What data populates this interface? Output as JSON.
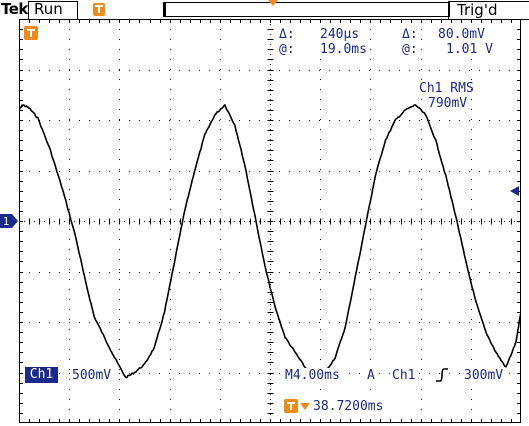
{
  "header": {
    "brand": "Tek",
    "run_state": "Run",
    "trigger_status": "Trig'd"
  },
  "cursors": {
    "delta_time_symbol": "Δ:",
    "delta_time": "240µs",
    "at_time_symbol": "@:",
    "at_time": "19.0ms",
    "delta_volt_symbol": "Δ:",
    "delta_volt": "80.0mV",
    "at_volt_symbol": "@:",
    "at_volt": "1.01 V"
  },
  "measurement": {
    "label": "Ch1 RMS",
    "value": "790mV"
  },
  "footer": {
    "channel_badge": "Ch1",
    "volts_per_div": "500mV",
    "timebase": "M4.00ms",
    "trigger_mode": "A",
    "trigger_source": "Ch1",
    "trigger_level": "300mV",
    "trigger_position": "38.7200ms"
  },
  "markers": {
    "channel_ground_label": "1"
  },
  "colors": {
    "readout": "#1a2a8c",
    "marker_orange": "#f08a1a",
    "trace": "#000000",
    "graticule": "#000000"
  },
  "chart_data": {
    "type": "line",
    "title": "",
    "xlabel": "",
    "ylabel": "",
    "x_unit": "ms",
    "y_unit": "V",
    "volts_per_div": 0.5,
    "time_per_div": 4.0,
    "xlim": [
      0,
      40
    ],
    "ylim": [
      -2.0,
      2.0
    ],
    "grid": true,
    "series": [
      {
        "values_x": [
          0.0,
          0.3,
          0.8,
          1.5,
          2.5,
          3.5,
          4.5,
          5.3,
          6.0,
          6.8,
          7.6,
          8.5,
          9.2,
          10.0,
          10.8,
          11.6,
          12.4,
          13.2,
          14.0,
          14.8,
          15.6,
          16.4,
          17.2,
          18.0,
          18.8,
          19.6,
          20.4,
          21.2,
          22.0,
          22.8,
          23.6,
          24.4,
          25.2,
          26.0,
          26.8,
          27.6,
          28.4,
          29.2,
          30.0,
          30.8,
          31.6,
          32.4,
          33.2,
          34.0,
          34.8,
          35.6,
          36.4,
          37.2,
          38.0,
          38.8,
          39.6,
          40.0
        ],
        "values_y": [
          1.1,
          1.15,
          1.12,
          1.02,
          0.7,
          0.3,
          -0.15,
          -0.6,
          -0.95,
          -1.15,
          -1.35,
          -1.55,
          -1.5,
          -1.42,
          -1.25,
          -0.9,
          -0.4,
          0.1,
          0.5,
          0.85,
          1.05,
          1.15,
          0.95,
          0.55,
          0.05,
          -0.45,
          -0.85,
          -1.15,
          -1.3,
          -1.45,
          -1.55,
          -1.5,
          -1.35,
          -1.05,
          -0.55,
          -0.05,
          0.45,
          0.8,
          1.0,
          1.1,
          1.15,
          1.05,
          0.8,
          0.45,
          0.05,
          -0.4,
          -0.8,
          -1.1,
          -1.3,
          -1.45,
          -1.2,
          -0.9
        ]
      }
    ]
  }
}
